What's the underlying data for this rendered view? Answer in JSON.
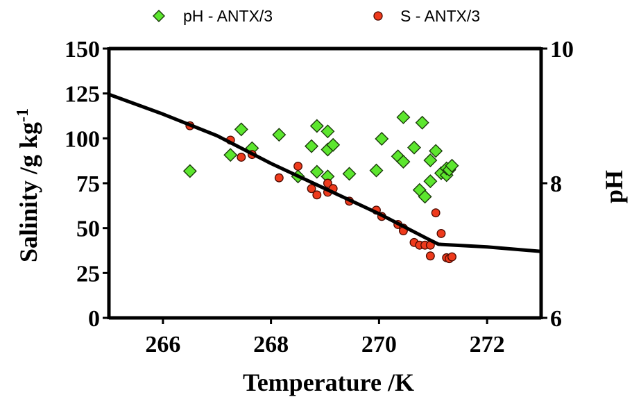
{
  "chart_data": {
    "type": "scatter",
    "xlabel": "Temperature /K",
    "ylabel_left_main": "Salinity /g kg",
    "ylabel_left_sup": "-1",
    "ylabel_right": "pH",
    "xlim": [
      265,
      273
    ],
    "ylim_left": [
      0,
      150
    ],
    "ylim_right": [
      6,
      10
    ],
    "x_ticks": [
      266,
      268,
      270,
      272
    ],
    "y_ticks_left": [
      0,
      25,
      50,
      75,
      100,
      125,
      150
    ],
    "y_ticks_right": [
      6,
      8,
      10
    ],
    "grid": false,
    "legend_position": "top-center",
    "series": [
      {
        "name": "pH - ANTX/3",
        "axis": "right",
        "marker": "diamond",
        "color": "#5ce62e",
        "points": [
          [
            266.5,
            8.18
          ],
          [
            267.25,
            8.42
          ],
          [
            267.45,
            8.8
          ],
          [
            267.65,
            8.52
          ],
          [
            268.15,
            8.72
          ],
          [
            268.5,
            8.1
          ],
          [
            268.75,
            8.55
          ],
          [
            268.85,
            8.85
          ],
          [
            268.85,
            8.17
          ],
          [
            269.05,
            8.5
          ],
          [
            269.05,
            8.77
          ],
          [
            269.05,
            8.1
          ],
          [
            269.15,
            8.57
          ],
          [
            269.45,
            8.14
          ],
          [
            269.95,
            8.19
          ],
          [
            270.05,
            8.66
          ],
          [
            270.35,
            8.4
          ],
          [
            270.45,
            8.32
          ],
          [
            270.45,
            8.98
          ],
          [
            270.65,
            8.53
          ],
          [
            270.75,
            7.9
          ],
          [
            270.8,
            8.9
          ],
          [
            270.85,
            7.8
          ],
          [
            270.95,
            8.03
          ],
          [
            270.95,
            8.34
          ],
          [
            271.05,
            8.48
          ],
          [
            271.15,
            8.15
          ],
          [
            271.25,
            8.12
          ],
          [
            271.25,
            8.22
          ],
          [
            271.3,
            8.2
          ],
          [
            271.35,
            8.26
          ]
        ]
      },
      {
        "name": "S - ANTX/3",
        "axis": "left",
        "marker": "circle",
        "color": "#ee3a1c",
        "points": [
          [
            266.5,
            107
          ],
          [
            267.25,
            99
          ],
          [
            267.45,
            89.5
          ],
          [
            267.65,
            91
          ],
          [
            268.15,
            78
          ],
          [
            268.5,
            84.5
          ],
          [
            268.75,
            72
          ],
          [
            268.85,
            68.5
          ],
          [
            269.05,
            75
          ],
          [
            269.05,
            70
          ],
          [
            269.15,
            72
          ],
          [
            269.45,
            65
          ],
          [
            269.95,
            60
          ],
          [
            270.05,
            56.5
          ],
          [
            270.35,
            52
          ],
          [
            270.45,
            50
          ],
          [
            270.45,
            48.5
          ],
          [
            270.65,
            42
          ],
          [
            270.75,
            40.5
          ],
          [
            270.85,
            40.5
          ],
          [
            270.95,
            40.5
          ],
          [
            270.95,
            34.5
          ],
          [
            271.05,
            58.5
          ],
          [
            271.15,
            47
          ],
          [
            271.25,
            33.5
          ],
          [
            271.3,
            33
          ],
          [
            271.35,
            34
          ]
        ]
      },
      {
        "name": "",
        "axis": "left",
        "marker": "line",
        "color": "#000000",
        "points": [
          [
            265,
            124.5
          ],
          [
            266.0,
            113.5
          ],
          [
            267.0,
            101.5
          ],
          [
            268.0,
            86
          ],
          [
            269.0,
            72
          ],
          [
            270.0,
            58
          ],
          [
            270.9,
            44
          ],
          [
            271.1,
            41
          ],
          [
            272.0,
            39.5
          ],
          [
            273.0,
            37
          ]
        ]
      }
    ]
  }
}
